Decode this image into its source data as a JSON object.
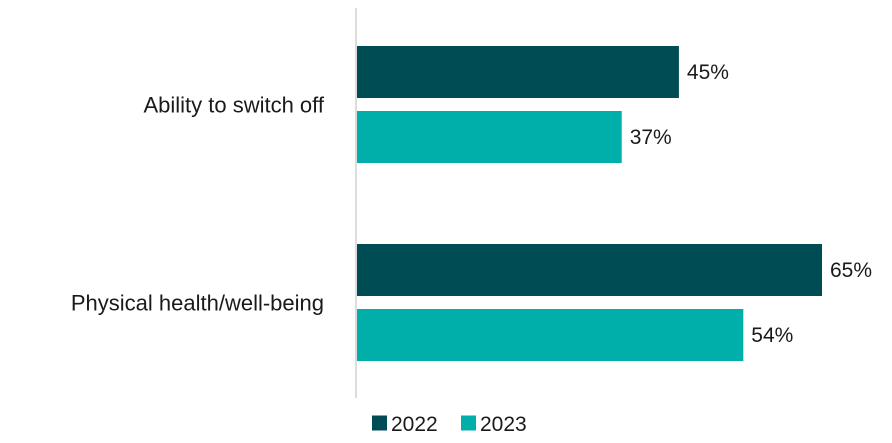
{
  "chart_data": {
    "type": "bar",
    "orientation": "horizontal",
    "categories": [
      "Ability to switch off",
      "Physical health/well-being"
    ],
    "series": [
      {
        "name": "2022",
        "values": [
          45,
          65
        ],
        "color": "#004c55"
      },
      {
        "name": "2023",
        "values": [
          37,
          54
        ],
        "color": "#00aeaa"
      }
    ],
    "value_suffix": "%",
    "xlim": [
      0,
      65
    ],
    "grid": false,
    "legend": "bottom-center",
    "axis_color": "#d0d0d0"
  }
}
